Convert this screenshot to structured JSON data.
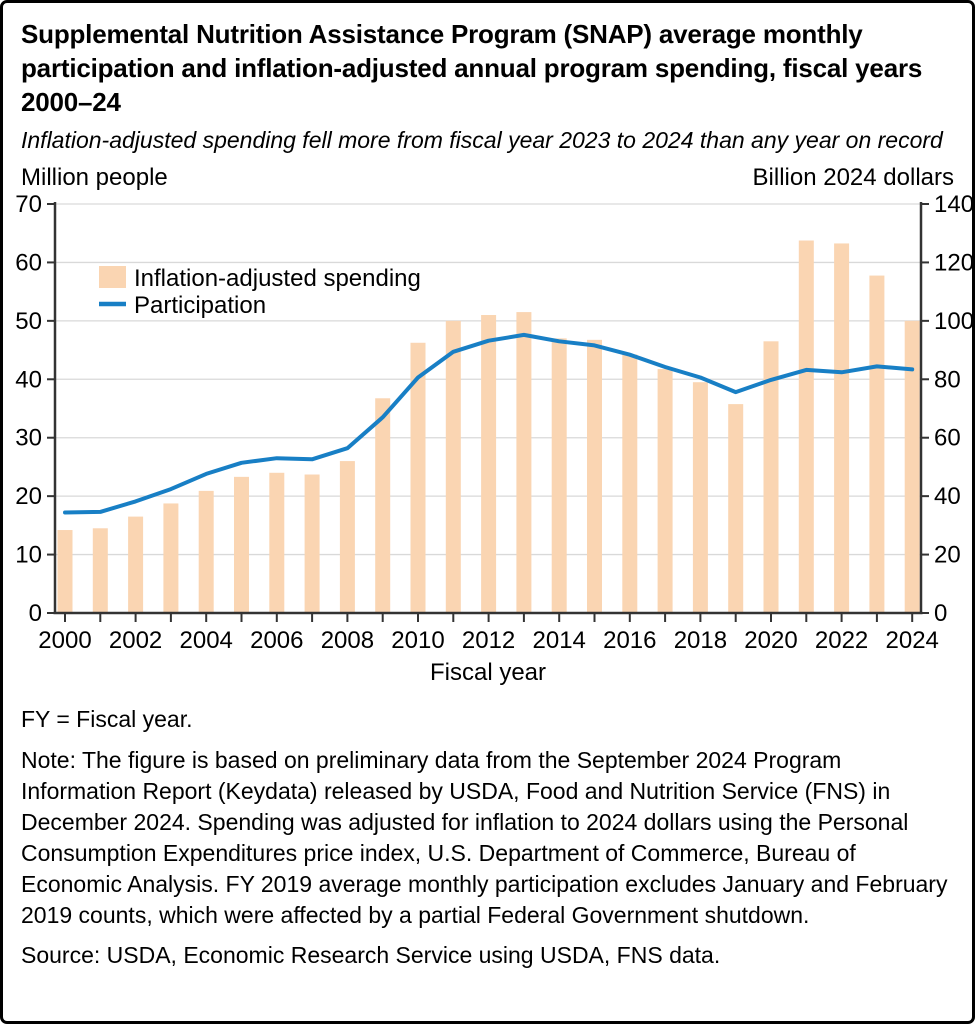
{
  "header": {
    "title": "Supplemental Nutrition Assistance Program (SNAP) average monthly participation and inflation-adjusted annual program spending, fiscal years 2000–24",
    "subtitle": "Inflation-adjusted spending fell more from fiscal year 2023 to 2024 than any year on record"
  },
  "chart_data": {
    "type": "bar",
    "subtype": "bar-and-line-dual-axis",
    "x": [
      2000,
      2001,
      2002,
      2003,
      2004,
      2005,
      2006,
      2007,
      2008,
      2009,
      2010,
      2011,
      2012,
      2013,
      2014,
      2015,
      2016,
      2017,
      2018,
      2019,
      2020,
      2021,
      2022,
      2023,
      2024
    ],
    "series": [
      {
        "name": "Inflation-adjusted spending",
        "type": "bar",
        "axis": "right",
        "color": "#FAD5B2",
        "values": [
          28.4,
          29.0,
          33.0,
          37.5,
          41.8,
          46.6,
          48.0,
          47.4,
          52.0,
          73.5,
          92.5,
          100.0,
          102.0,
          103.0,
          94.0,
          93.5,
          88.5,
          83.5,
          79.0,
          71.5,
          93.0,
          127.5,
          126.5,
          115.5,
          100.0
        ]
      },
      {
        "name": "Participation",
        "type": "line",
        "axis": "left",
        "color": "#187FC5",
        "values": [
          17.2,
          17.3,
          19.1,
          21.2,
          23.8,
          25.7,
          26.5,
          26.3,
          28.2,
          33.5,
          40.3,
          44.7,
          46.6,
          47.6,
          46.5,
          45.8,
          44.2,
          42.1,
          40.3,
          37.8,
          39.9,
          41.6,
          41.2,
          42.2,
          41.7
        ]
      }
    ],
    "left_axis": {
      "label": "Million people",
      "min": 0,
      "max": 70,
      "ticks": [
        0,
        10,
        20,
        30,
        40,
        50,
        60,
        70
      ]
    },
    "right_axis": {
      "label": "Billion 2024 dollars",
      "min": 0,
      "max": 140,
      "ticks": [
        0,
        20,
        40,
        60,
        80,
        100,
        120,
        140
      ]
    },
    "x_axis": {
      "label": "Fiscal year",
      "labeled_years": [
        2000,
        2002,
        2004,
        2006,
        2008,
        2010,
        2012,
        2014,
        2016,
        2018,
        2020,
        2022,
        2024
      ]
    },
    "legend": {
      "position": "top-left-inside",
      "entries": [
        "Inflation-adjusted spending",
        "Participation"
      ]
    },
    "grid": "horizontal",
    "grid_color": "#d9d9d9",
    "axis_color": "#333333"
  },
  "footer": {
    "abbreviation": "FY = Fiscal year.",
    "note": "Note: The figure is based on preliminary data from the September 2024 Program Information Report (Keydata) released by USDA, Food and Nutrition Service (FNS) in December 2024. Spending was adjusted for inflation to 2024 dollars using the Personal Consumption Expenditures price index, U.S. Department of Commerce, Bureau of Economic Analysis. FY 2019 average monthly participation excludes January and February 2019 counts, which were affected by a partial Federal Government shutdown.",
    "source": "Source: USDA, Economic Research Service using USDA, FNS data."
  }
}
